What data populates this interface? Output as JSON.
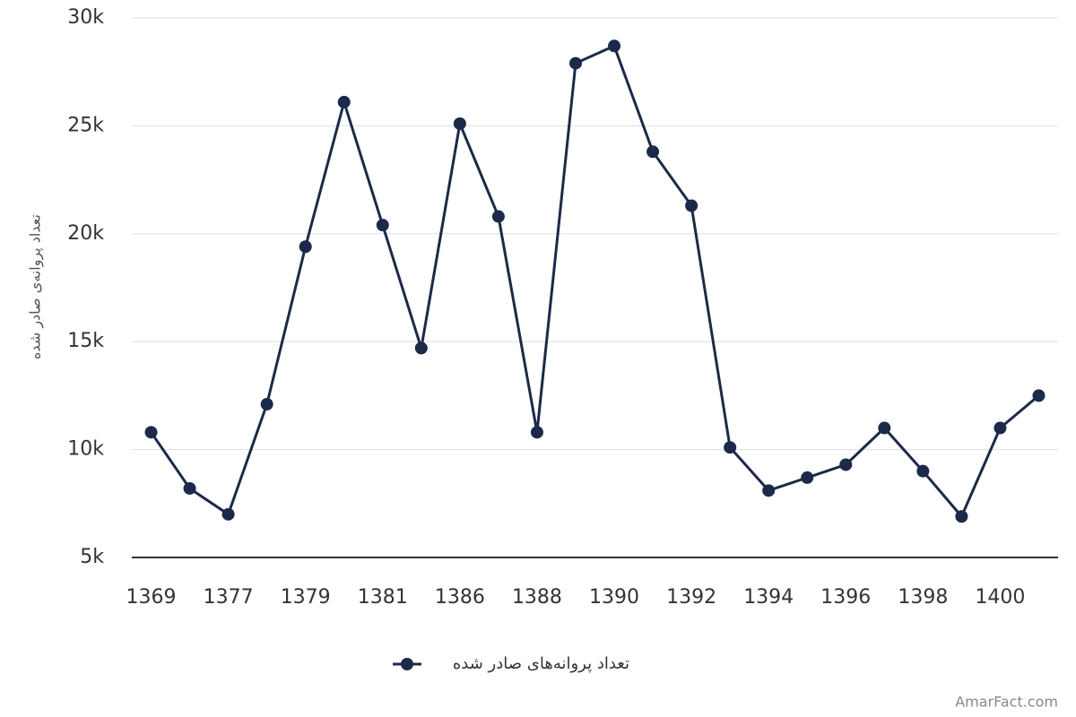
{
  "chart_data": {
    "type": "line",
    "y_axis_label": "تعداد پروانه‌ی صادر شده",
    "categories": [
      "1369",
      null,
      "1377",
      null,
      "1379",
      null,
      "1381",
      null,
      "1386",
      null,
      "1388",
      null,
      "1390",
      null,
      "1392",
      null,
      "1394",
      null,
      "1396",
      null,
      "1398",
      null,
      "1400",
      null
    ],
    "series": [
      {
        "name": "تعداد پروانه‌های صادر شده",
        "color": "#1b2a4a",
        "values": [
          10800,
          8200,
          7000,
          12100,
          19400,
          26100,
          20400,
          14700,
          25100,
          20800,
          10800,
          27900,
          28700,
          23800,
          21300,
          10100,
          8100,
          8700,
          9300,
          11000,
          9000,
          6900,
          11000,
          12500
        ]
      }
    ],
    "ylim": [
      5000,
      30000
    ],
    "yticks": [
      {
        "value": 5000,
        "label": "5k"
      },
      {
        "value": 10000,
        "label": "10k"
      },
      {
        "value": 15000,
        "label": "15k"
      },
      {
        "value": 20000,
        "label": "20k"
      },
      {
        "value": 25000,
        "label": "25k"
      },
      {
        "value": 30000,
        "label": "30k"
      }
    ],
    "grid": true,
    "legend": "bottom",
    "watermark": "AmarFact.com"
  }
}
